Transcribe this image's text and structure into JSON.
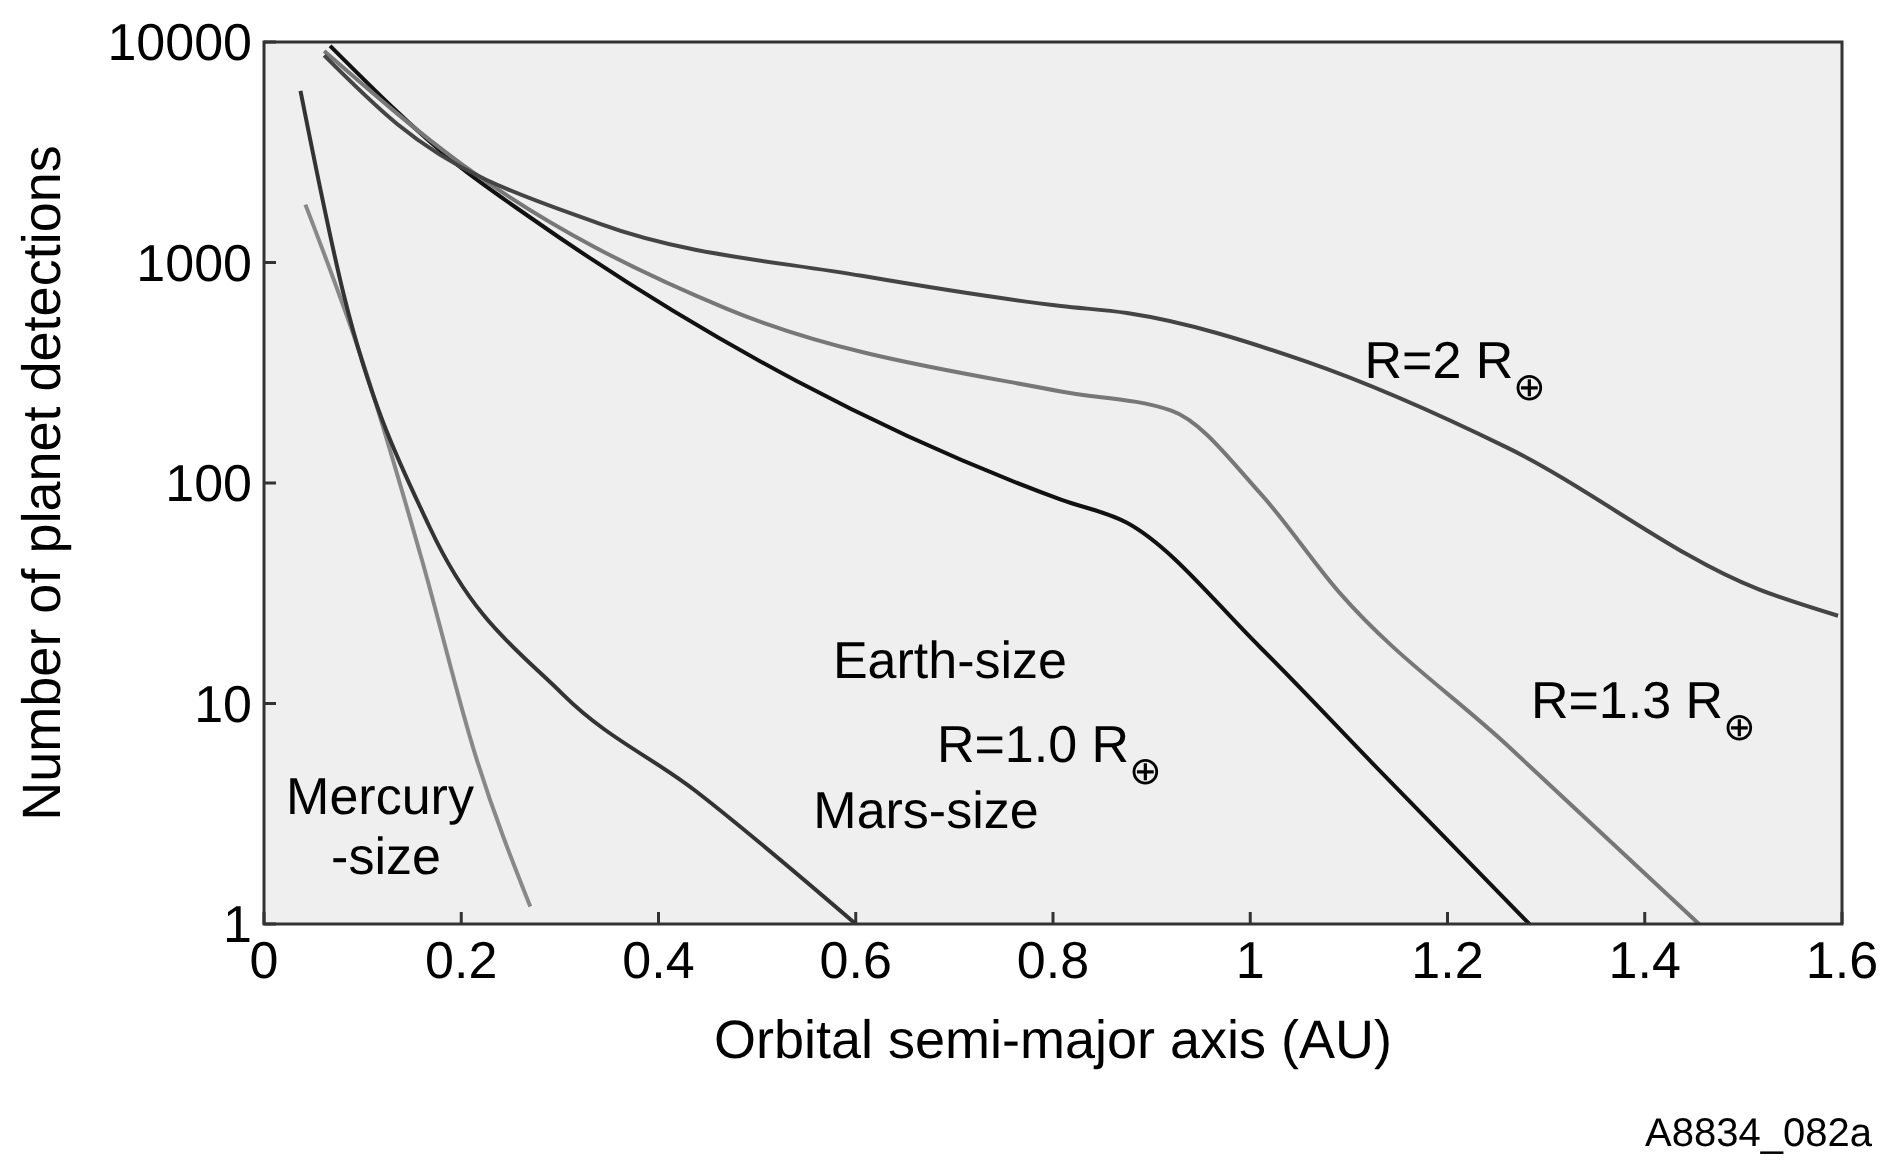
{
  "chart_data": {
    "type": "line",
    "xlabel": "Orbital semi-major axis (AU)",
    "ylabel": "Number of planet detections",
    "xlim": [
      0,
      1.6
    ],
    "xticks": [
      0,
      0.2,
      0.4,
      0.6,
      0.8,
      1,
      1.2,
      1.4,
      1.6
    ],
    "ylim": [
      1,
      10000
    ],
    "yticks": [
      1,
      10,
      100,
      1000,
      10000
    ],
    "log": "y",
    "grid": false,
    "marker": "none",
    "line_style": "solid",
    "series": [
      {
        "name": "Mercury\n-size",
        "color": "#888888",
        "x": [
          0.042,
          0.1,
          0.16,
          0.215,
          0.27
        ],
        "values": [
          1830,
          355,
          45,
          5.7,
          1.2
        ]
      },
      {
        "name": "Mars-size",
        "color": "#333333",
        "x": [
          0.037,
          0.081,
          0.168,
          0.303,
          0.438,
          0.6
        ],
        "values": [
          6000,
          710,
          63,
          11,
          4,
          1
        ]
      },
      {
        "name": "Earth-size\nR=1.0 R$_{⊕}$",
        "color": "#111111",
        "x": [
          0.067,
          0.195,
          0.27,
          0.54,
          0.808,
          0.875,
          1.01,
          1.125,
          1.283
        ],
        "values": [
          9600,
          2800,
          1600,
          290,
          84,
          66,
          18,
          5.3,
          1
        ]
      },
      {
        "name": "R=1.3 R$_{⊕}$",
        "color": "#777777",
        "x": [
          0.061,
          0.2,
          0.47,
          0.808,
          0.92,
          1.01,
          1.09,
          1.26,
          1.455
        ],
        "values": [
          9100,
          2800,
          615,
          260,
          213,
          90,
          32,
          6.5,
          1
        ]
      },
      {
        "name": "R=2 R$_{⊕}$",
        "color": "#444444",
        "x": [
          0.061,
          0.135,
          0.34,
          0.606,
          0.808,
          0.875,
          1.057,
          1.26,
          1.515,
          1.596
        ],
        "values": [
          8700,
          4250,
          1500,
          870,
          635,
          590,
          355,
          145,
          33,
          25
        ]
      }
    ],
    "annotations": [
      "A8834_082a"
    ]
  }
}
